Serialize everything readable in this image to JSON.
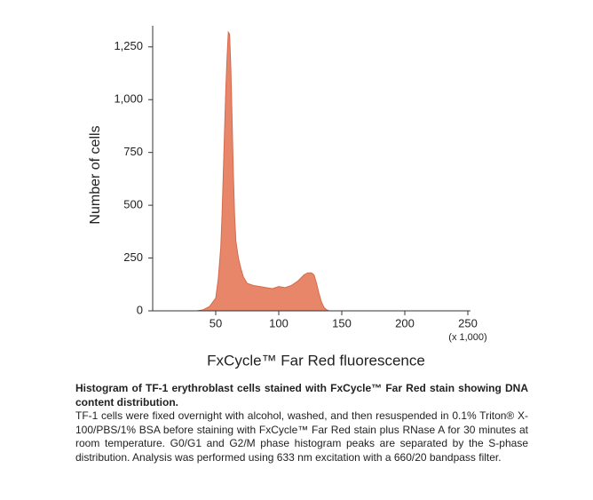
{
  "chart_data": {
    "type": "area",
    "x": [
      35,
      40,
      45,
      50,
      52,
      54,
      55,
      56,
      57,
      58,
      59,
      60,
      61,
      62,
      63,
      64,
      65,
      66,
      68,
      70,
      72,
      75,
      80,
      85,
      90,
      95,
      100,
      105,
      110,
      115,
      120,
      123,
      126,
      128,
      130,
      132,
      134,
      136,
      138,
      140
    ],
    "values": [
      0,
      5,
      20,
      60,
      150,
      300,
      450,
      650,
      850,
      1050,
      1200,
      1320,
      1310,
      1150,
      900,
      650,
      450,
      330,
      250,
      200,
      160,
      130,
      120,
      115,
      110,
      105,
      115,
      110,
      120,
      140,
      170,
      180,
      180,
      170,
      130,
      80,
      40,
      15,
      5,
      0
    ],
    "color": "#e8866a",
    "xlabel": "FxCycle™ Far Red fluorescence",
    "ylabel": "Number of cells",
    "annotation": "(x 1,000)",
    "xlim": [
      0,
      252
    ],
    "ylim": [
      0,
      1350
    ],
    "xticks": [
      50,
      100,
      150,
      200,
      250
    ],
    "yticks": [
      0,
      250,
      500,
      750,
      {
        "value": 1000,
        "label": "1,000"
      },
      {
        "value": 1250,
        "label": "1,250"
      }
    ]
  },
  "caption": {
    "title": "Histogram of TF-1 erythroblast cells stained with FxCycle™ Far Red stain showing DNA content distribution.",
    "text": "TF-1 cells were fixed overnight with alcohol, washed, and then resuspended in 0.1% Triton® X-100/PBS/1% BSA before staining with FxCycle™ Far Red stain plus RNase A for 30 minutes at room temperature. G0/G1 and G2/M phase histogram peaks are separated by the S-phase distribution. Analysis was performed using 633 nm excitation with a 660/20 bandpass filter."
  }
}
